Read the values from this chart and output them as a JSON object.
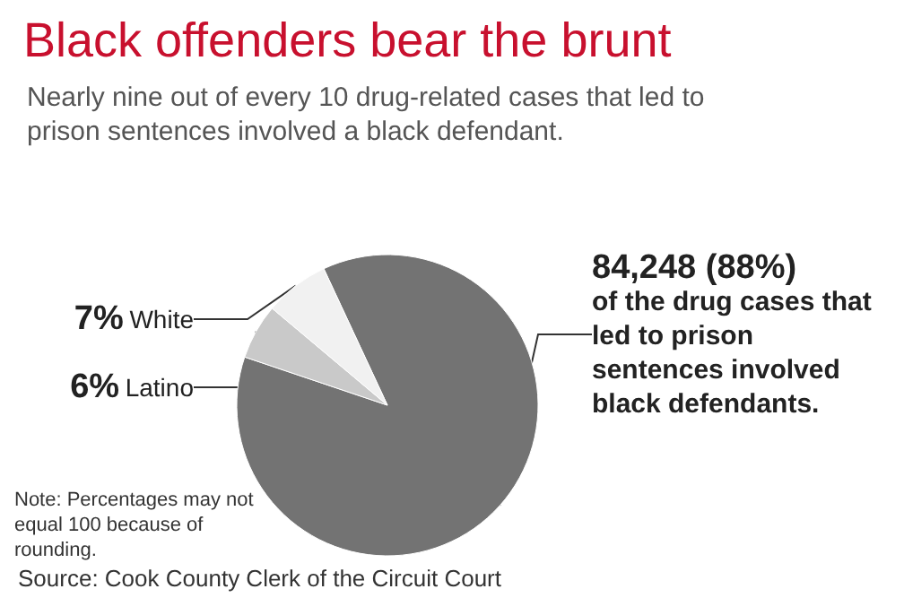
{
  "chart_data": {
    "type": "pie",
    "title": "Black offenders bear the brunt",
    "subtitle": "Nearly nine out of every 10 drug-related cases that led to prison sentences involved a black defendant.",
    "categories": [
      null,
      "Latino",
      "White"
    ],
    "values": [
      88,
      6,
      7
    ],
    "colors": [
      "#737373",
      "#c9c9c9",
      "#f1f1f1"
    ],
    "value_labels": [
      "84,248 (88%)",
      "6%",
      "7%"
    ],
    "annotations": [
      "of the drug cases that led to prison sentences involved black defendants.",
      "Note: Percentages may not equal 100 because of rounding.",
      "Source: Cook County Clerk of the Circuit Court"
    ],
    "legend": false
  }
}
